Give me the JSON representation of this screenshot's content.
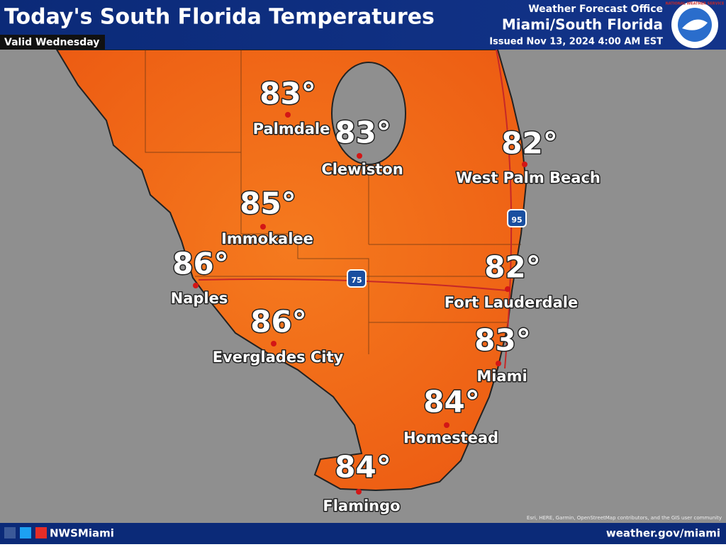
{
  "header": {
    "title": "Today's South Florida Temperatures",
    "valid": "Valid Wednesday",
    "office": "Weather Forecast Office",
    "region": "Miami/South Florida",
    "issued": "Issued Nov 13, 2024 4:00 AM EST",
    "logo": "NATIONAL WEATHER SERVICE"
  },
  "cities": [
    {
      "name": "Palmdale",
      "temp": "83°"
    },
    {
      "name": "Clewiston",
      "temp": "83°"
    },
    {
      "name": "West Palm Beach",
      "temp": "82°"
    },
    {
      "name": "Immokalee",
      "temp": "85°"
    },
    {
      "name": "Naples",
      "temp": "86°"
    },
    {
      "name": "Everglades City",
      "temp": "86°"
    },
    {
      "name": "Fort Lauderdale",
      "temp": "82°"
    },
    {
      "name": "Miami",
      "temp": "83°"
    },
    {
      "name": "Homestead",
      "temp": "84°"
    },
    {
      "name": "Flamingo",
      "temp": "84°"
    }
  ],
  "highways": [
    "75",
    "95"
  ],
  "attribution": "Esri, HERE, Garmin, OpenStreetMap contributors, and the GIS user community",
  "footer": {
    "handle": "NWSMiami",
    "url": "weather.gov/miami"
  }
}
